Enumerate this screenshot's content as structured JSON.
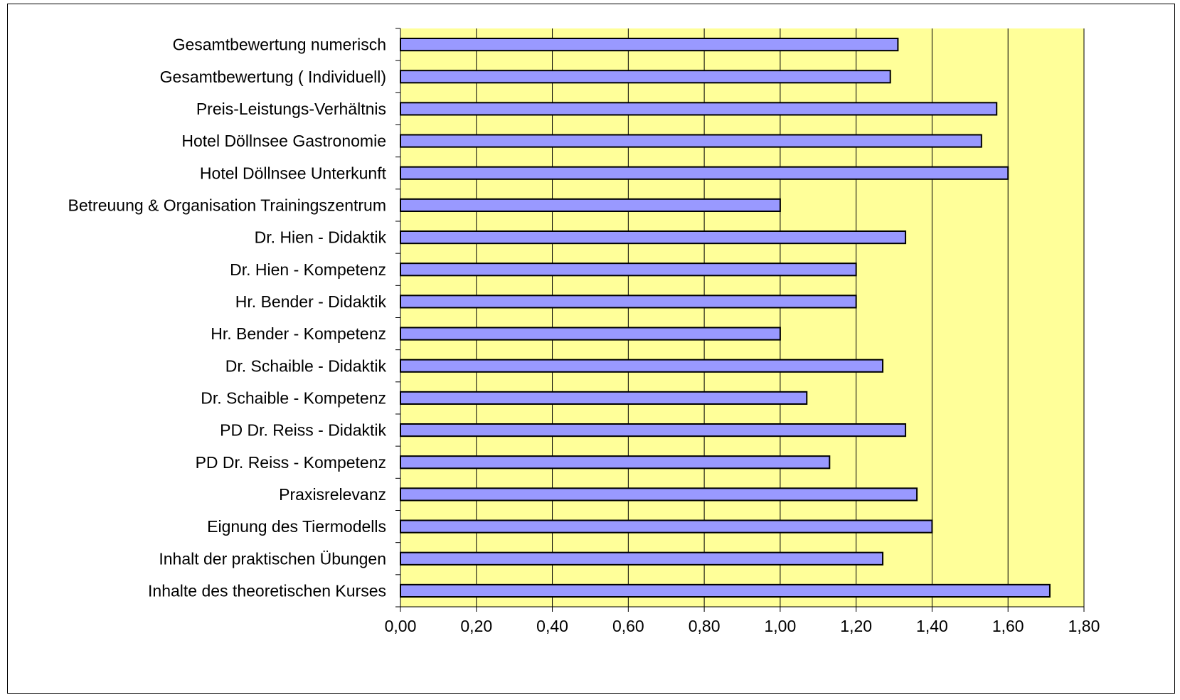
{
  "chart_data": {
    "type": "bar",
    "orientation": "horizontal",
    "title": "",
    "xlabel": "",
    "ylabel": "",
    "categories": [
      "Gesamtbewertung numerisch",
      "Gesamtbewertung ( Individuell)",
      "Preis-Leistungs-Verhältnis",
      "Hotel Döllnsee Gastronomie",
      "Hotel Döllnsee Unterkunft",
      "Betreuung & Organisation Trainingszentrum",
      "Dr. Hien - Didaktik",
      "Dr. Hien - Kompetenz",
      "Hr. Bender - Didaktik",
      "Hr. Bender - Kompetenz",
      "Dr. Schaible - Didaktik",
      "Dr. Schaible - Kompetenz",
      "PD Dr. Reiss - Didaktik",
      "PD Dr. Reiss - Kompetenz",
      "Praxisrelevanz",
      "Eignung des Tiermodells",
      "Inhalt der praktischen Übungen",
      "Inhalte des theoretischen Kurses"
    ],
    "values": [
      1.31,
      1.29,
      1.57,
      1.53,
      1.6,
      1.0,
      1.33,
      1.2,
      1.2,
      1.0,
      1.27,
      1.07,
      1.33,
      1.13,
      1.36,
      1.4,
      1.27,
      1.71
    ],
    "xlim": [
      0,
      1.8
    ],
    "x_ticks": [
      "0,00",
      "0,20",
      "0,40",
      "0,60",
      "0,80",
      "1,00",
      "1,20",
      "1,40",
      "1,60",
      "1,80"
    ],
    "x_tick_values": [
      0,
      0.2,
      0.4,
      0.6,
      0.8,
      1.0,
      1.2,
      1.4,
      1.6,
      1.8
    ],
    "grid": "vertical",
    "legend": "none",
    "colors": {
      "plot_background": "#FFFF99",
      "bar_fill": "#9999FF",
      "bar_stroke": "#000000",
      "gridline": "#000000"
    }
  }
}
